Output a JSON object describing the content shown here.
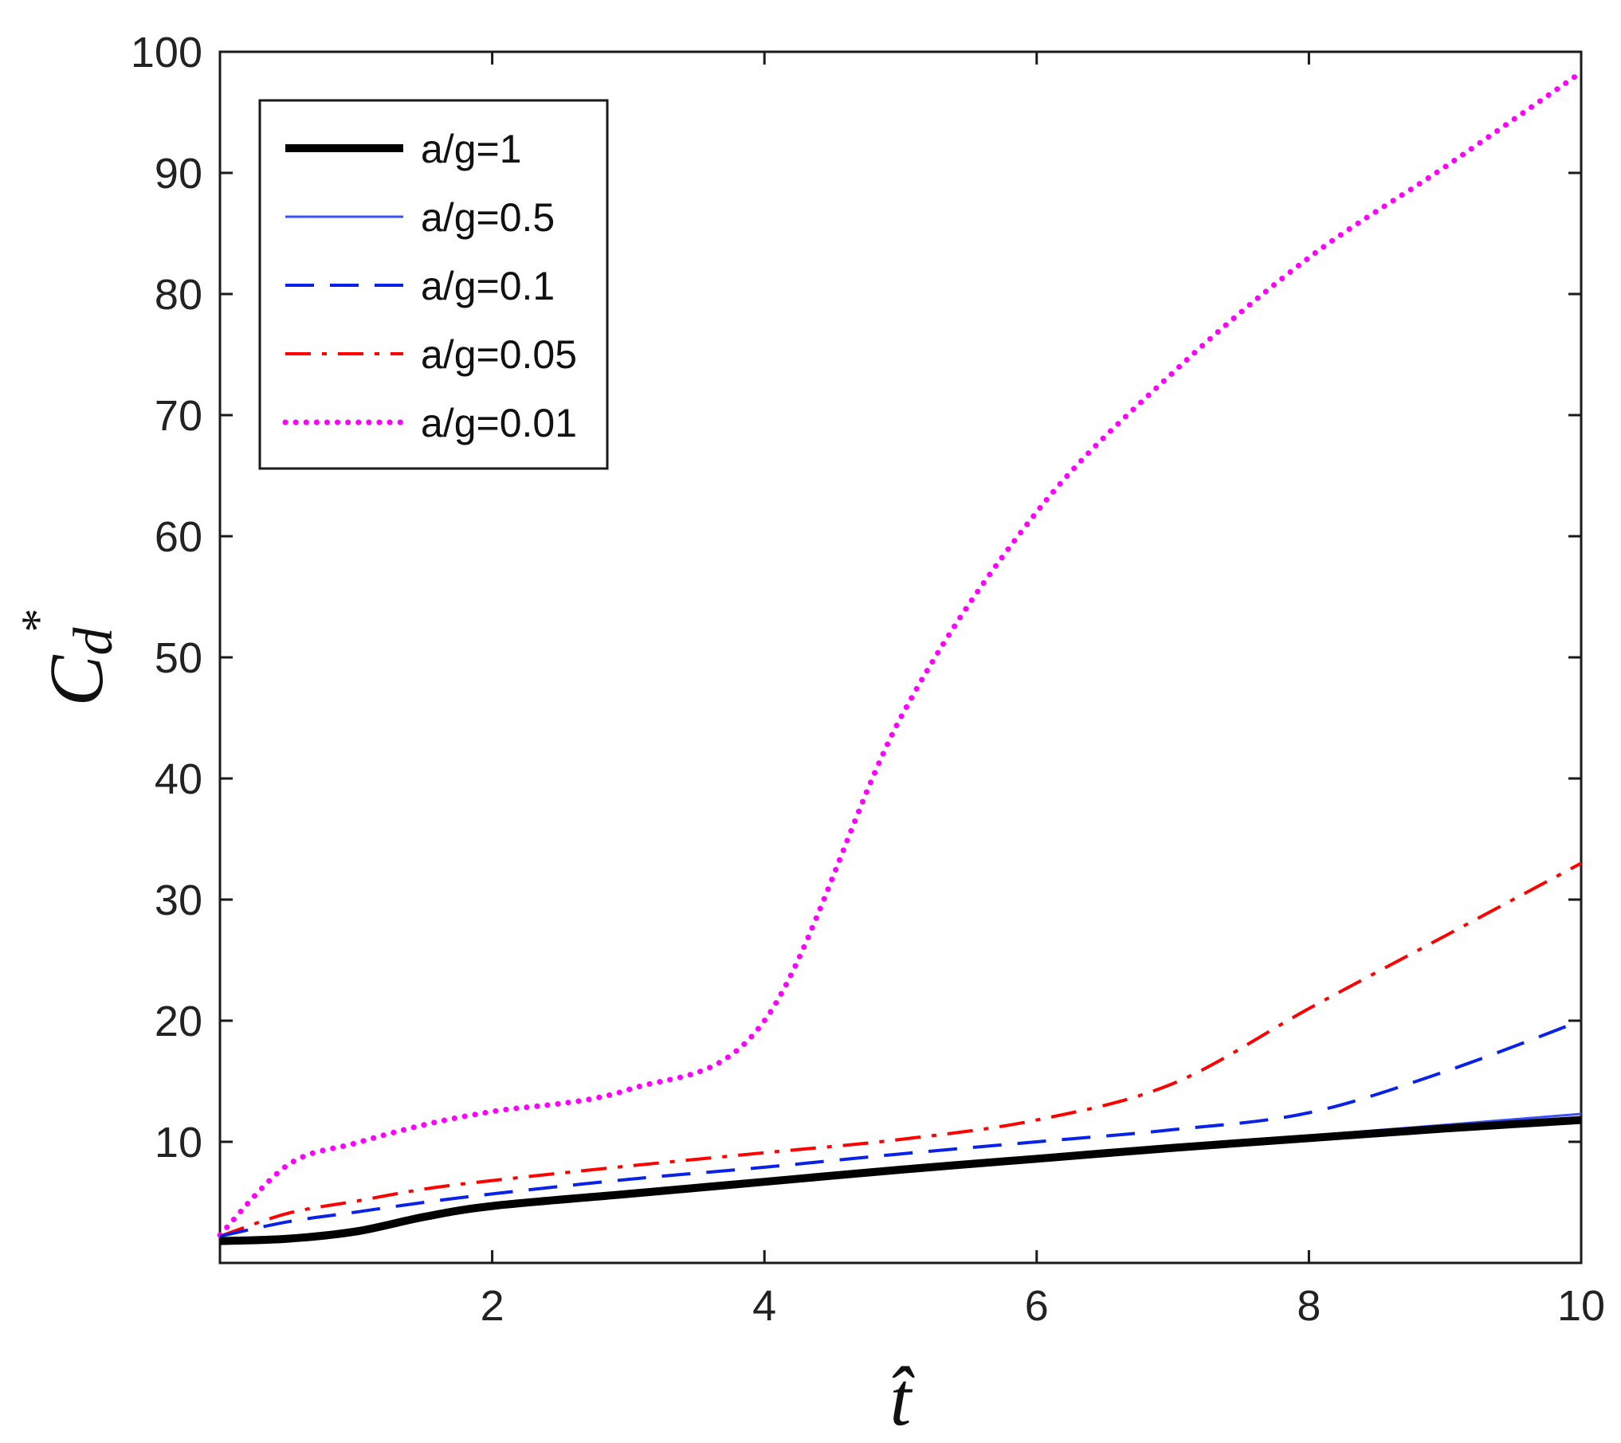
{
  "chart_data": {
    "type": "line",
    "title": "",
    "xlabel": "t̂",
    "ylabel": "C_d*",
    "ylabel_base": "C",
    "ylabel_sub": "d",
    "ylabel_sup": "*",
    "xlim": [
      0,
      10
    ],
    "ylim": [
      0,
      100
    ],
    "xticks": [
      2,
      4,
      6,
      8,
      10
    ],
    "xtick_labels": [
      "2",
      "4",
      "6",
      "8",
      "10"
    ],
    "yticks": [
      10,
      20,
      30,
      40,
      50,
      60,
      70,
      80,
      90,
      100
    ],
    "ytick_labels": [
      "10",
      "20",
      "30",
      "40",
      "50",
      "60",
      "70",
      "80",
      "90",
      "100"
    ],
    "grid": false,
    "legend_position": "top-left",
    "x": [
      0,
      0.5,
      1,
      1.5,
      2,
      3,
      4,
      5,
      6,
      7,
      8,
      9,
      10
    ],
    "series": [
      {
        "name": "a/g=1",
        "color": "#000000",
        "dash": "solid-thick",
        "values": [
          1.8,
          2.0,
          2.6,
          3.8,
          4.7,
          5.7,
          6.7,
          7.7,
          8.6,
          9.5,
          10.3,
          11.1,
          11.8
        ]
      },
      {
        "name": "a/g=0.5",
        "color": "#3a4fff",
        "dash": "solid-thin",
        "values": [
          2.0,
          2.2,
          2.8,
          3.9,
          4.8,
          5.8,
          6.8,
          7.8,
          8.7,
          9.6,
          10.5,
          11.4,
          12.3
        ]
      },
      {
        "name": "a/g=0.1",
        "color": "#0a22e8",
        "dash": "dashed",
        "values": [
          2.2,
          3.4,
          4.2,
          5.0,
          5.7,
          6.9,
          7.9,
          9.0,
          10.0,
          11.0,
          12.4,
          15.8,
          20.0
        ]
      },
      {
        "name": "a/g=0.05",
        "color": "#ff0000",
        "dash": "dashdot",
        "values": [
          2.2,
          4.1,
          5.1,
          6.1,
          6.8,
          8.0,
          9.1,
          10.2,
          11.8,
          14.8,
          21.0,
          27.0,
          33.0
        ]
      },
      {
        "name": "a/g=0.01",
        "color": "#ff00ff",
        "dash": "dotted",
        "values": [
          2.3,
          8.1,
          9.9,
          11.4,
          12.5,
          14.3,
          20.0,
          45.0,
          62.0,
          73.5,
          83.0,
          90.5,
          98.3
        ]
      }
    ]
  }
}
